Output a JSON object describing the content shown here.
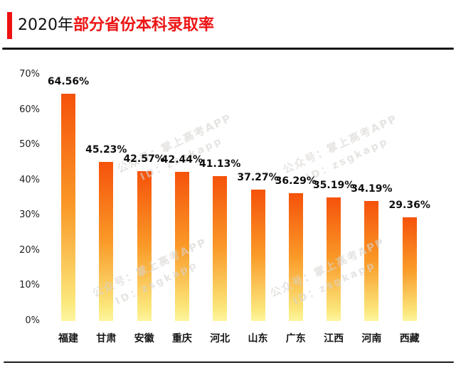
{
  "header": {
    "title_prefix": "2020年",
    "title_main": "部分省份本科录取率",
    "accent_color": "#ee1111",
    "title_main_color": "#ed1414"
  },
  "chart_data": {
    "type": "bar",
    "title": "2020年部分省份本科录取率",
    "categories": [
      "福建",
      "甘肃",
      "安徽",
      "重庆",
      "河北",
      "山东",
      "广东",
      "江西",
      "河南",
      "西藏"
    ],
    "values": [
      64.56,
      45.23,
      42.57,
      42.44,
      41.13,
      37.27,
      36.29,
      35.19,
      34.19,
      29.36
    ],
    "value_labels": [
      "64.56%",
      "45.23%",
      "42.57%",
      "42.44%",
      "41.13%",
      "37.27%",
      "36.29%",
      "35.19%",
      "34.19%",
      "29.36%"
    ],
    "y_ticks": [
      "70%",
      "60%",
      "50%",
      "40%",
      "30%",
      "20%",
      "10%",
      "0%"
    ],
    "ylim": [
      0,
      70
    ],
    "xlabel": "",
    "ylabel": "",
    "grid": false,
    "legend_position": "none",
    "bar_gradient": {
      "top": "#f5520a",
      "mid": "#fa9a28",
      "low": "#fbe87d",
      "bottom": "#fdf5a0"
    }
  },
  "watermark": {
    "line1": "公众号：掌上高考APP",
    "line2": "ID：zsgkapp"
  }
}
